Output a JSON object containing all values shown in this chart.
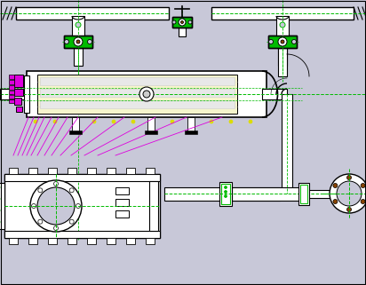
{
  "bg_color": "#c8c8d8",
  "line_color": "#000000",
  "green_color": "#00bb00",
  "magenta_color": "#dd00dd",
  "yellow_color": "#dddd00",
  "white_color": "#ffffff",
  "gray_color": "#999999",
  "lgray_color": "#cccccc",
  "brown_color": "#884400",
  "figsize": [
    4.12,
    3.21
  ],
  "dpi": 100
}
